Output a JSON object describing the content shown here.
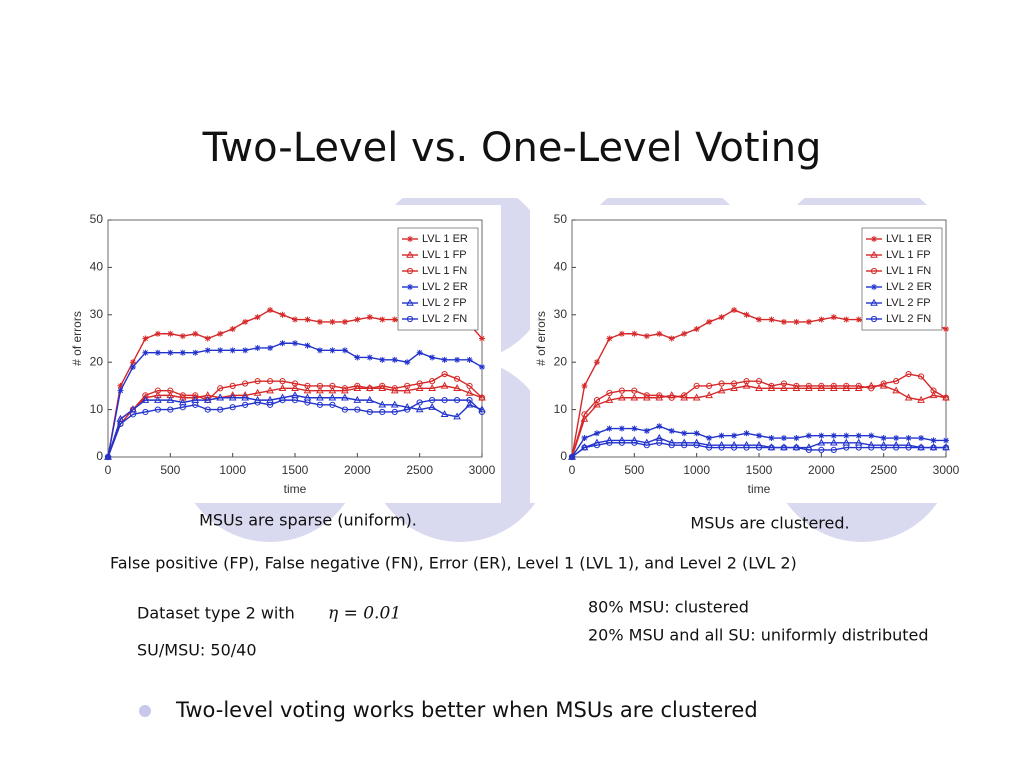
{
  "title": "Two-Level vs. One-Level Voting",
  "chart_data": [
    {
      "type": "line",
      "xlabel": "time",
      "ylabel": "# of errors",
      "x": [
        0,
        100,
        200,
        300,
        400,
        500,
        600,
        700,
        800,
        900,
        1000,
        1100,
        1200,
        1300,
        1400,
        1500,
        1600,
        1700,
        1800,
        1900,
        2000,
        2100,
        2200,
        2300,
        2400,
        2500,
        2600,
        2700,
        2800,
        2900,
        3000
      ],
      "xlim": [
        0,
        3000
      ],
      "ylim": [
        0,
        50
      ],
      "xticks": [
        0,
        500,
        1000,
        1500,
        2000,
        2500,
        3000
      ],
      "yticks": [
        0,
        10,
        20,
        30,
        40,
        50
      ],
      "legend": "upper right",
      "series": [
        {
          "name": "LVL 1 ER",
          "color": "#d62828",
          "marker": "star",
          "values": [
            0,
            15,
            20,
            25,
            26,
            26,
            25.5,
            26,
            25,
            26,
            27,
            28.5,
            29.5,
            31,
            30,
            29,
            29,
            28.5,
            28.5,
            28.5,
            29,
            29.5,
            29,
            29,
            28.5,
            28,
            29,
            29,
            29,
            28,
            25
          ]
        },
        {
          "name": "LVL 1 FP",
          "color": "#d62828",
          "marker": "triangle",
          "values": [
            0,
            8,
            10,
            12.5,
            13,
            13,
            12.5,
            12.5,
            13,
            12.5,
            13,
            13,
            13.5,
            14,
            14.5,
            14.5,
            14,
            14,
            14,
            14,
            14.5,
            14.5,
            14.5,
            14,
            14,
            14.5,
            14.5,
            15,
            14.5,
            13.5,
            12.5
          ]
        },
        {
          "name": "LVL 1 FN",
          "color": "#d62828",
          "marker": "circle",
          "values": [
            0,
            7,
            10,
            13,
            14,
            14,
            13,
            13,
            12,
            14.5,
            15,
            15.5,
            16,
            16,
            16,
            15.5,
            15,
            15,
            15,
            14.5,
            15,
            14.5,
            15,
            14.5,
            15,
            15.5,
            16,
            17.5,
            16.5,
            15,
            12.5
          ]
        },
        {
          "name": "LVL 2 ER",
          "color": "#2233cc",
          "marker": "star",
          "values": [
            0,
            14,
            19,
            22,
            22,
            22,
            22,
            22,
            22.5,
            22.5,
            22.5,
            22.5,
            23,
            23,
            24,
            24,
            23.5,
            22.5,
            22.5,
            22.5,
            21,
            21,
            20.5,
            20.5,
            20,
            22,
            21,
            20.5,
            20.5,
            20.5,
            19
          ]
        },
        {
          "name": "LVL 2 FP",
          "color": "#2233cc",
          "marker": "triangle",
          "values": [
            0,
            8,
            10,
            12,
            12,
            12,
            11.5,
            12,
            12,
            12.5,
            12.5,
            12.5,
            12,
            12,
            12.5,
            13,
            12.5,
            12.5,
            12.5,
            12.5,
            12,
            12,
            11,
            11,
            10.5,
            10,
            10.5,
            9,
            8.5,
            11,
            10
          ]
        },
        {
          "name": "LVL 2 FN",
          "color": "#2233cc",
          "marker": "circle",
          "values": [
            0,
            7,
            9,
            9.5,
            10,
            10,
            10.5,
            11,
            10,
            10,
            10.5,
            11,
            11.5,
            11,
            12,
            12,
            11.5,
            11,
            11,
            10,
            10,
            9.5,
            9.5,
            9.5,
            10,
            11.5,
            12,
            12,
            12,
            12,
            9.5
          ]
        }
      ]
    },
    {
      "type": "line",
      "xlabel": "time",
      "ylabel": "# of errors",
      "x": [
        0,
        100,
        200,
        300,
        400,
        500,
        600,
        700,
        800,
        900,
        1000,
        1100,
        1200,
        1300,
        1400,
        1500,
        1600,
        1700,
        1800,
        1900,
        2000,
        2100,
        2200,
        2300,
        2400,
        2500,
        2600,
        2700,
        2800,
        2900,
        3000
      ],
      "xlim": [
        0,
        3000
      ],
      "ylim": [
        0,
        50
      ],
      "xticks": [
        0,
        500,
        1000,
        1500,
        2000,
        2500,
        3000
      ],
      "yticks": [
        0,
        10,
        20,
        30,
        40,
        50
      ],
      "legend": "upper right",
      "series": [
        {
          "name": "LVL 1 ER",
          "color": "#d62828",
          "marker": "star",
          "values": [
            0,
            15,
            20,
            25,
            26,
            26,
            25.5,
            26,
            25,
            26,
            27,
            28.5,
            29.5,
            31,
            30,
            29,
            29,
            28.5,
            28.5,
            28.5,
            29,
            29.5,
            29,
            29,
            28.5,
            28,
            29,
            29,
            29,
            28,
            27
          ]
        },
        {
          "name": "LVL 1 FP",
          "color": "#d62828",
          "marker": "triangle",
          "values": [
            0,
            8,
            11,
            12,
            12.5,
            12.5,
            12.5,
            12.5,
            13,
            12.5,
            12.5,
            13,
            14,
            14.5,
            15,
            14.5,
            14.5,
            14.5,
            14.5,
            14.5,
            14.5,
            14.5,
            14.5,
            14.5,
            15,
            15,
            14,
            12.5,
            12,
            13,
            12.5
          ]
        },
        {
          "name": "LVL 1 FN",
          "color": "#d62828",
          "marker": "circle",
          "values": [
            0,
            9,
            12,
            13.5,
            14,
            14,
            13,
            13,
            12.5,
            13,
            15,
            15,
            15.5,
            15.5,
            16,
            16,
            15,
            15.5,
            15,
            15,
            15,
            15,
            15,
            15,
            14.5,
            15.5,
            16,
            17.5,
            17,
            14,
            12.5
          ]
        },
        {
          "name": "LVL 2 ER",
          "color": "#2233cc",
          "marker": "star",
          "values": [
            0,
            4,
            5,
            6,
            6,
            6,
            5.5,
            6.5,
            5.5,
            5,
            5,
            4,
            4.5,
            4.5,
            5,
            4.5,
            4,
            4,
            4,
            4.5,
            4.5,
            4.5,
            4.5,
            4.5,
            4.5,
            4,
            4,
            4,
            4,
            3.5,
            3.5
          ]
        },
        {
          "name": "LVL 2 FP",
          "color": "#2233cc",
          "marker": "triangle",
          "values": [
            0,
            2,
            3,
            3.5,
            3.5,
            3.5,
            3,
            4,
            3,
            3,
            3,
            2.5,
            2.5,
            2.5,
            2.5,
            2.5,
            2,
            2,
            2,
            2,
            3,
            3,
            3,
            3,
            2.5,
            2.5,
            2.5,
            2.5,
            2,
            2,
            2
          ]
        },
        {
          "name": "LVL 2 FN",
          "color": "#2233cc",
          "marker": "circle",
          "values": [
            0,
            2,
            2.5,
            3,
            3,
            3,
            2.5,
            3,
            2.5,
            2.5,
            2.5,
            2,
            2,
            2,
            2,
            2,
            2,
            2,
            2,
            1.5,
            1.5,
            1.5,
            2,
            2,
            2,
            2,
            2,
            2,
            2,
            2,
            2
          ]
        }
      ]
    }
  ],
  "captions": [
    "MSUs are sparse (uniform).",
    "MSUs are clustered."
  ],
  "abbreviations": "False positive (FP), False negative (FN), Error (ER),  Level 1 (LVL 1), and  Level 2 (LVL 2)",
  "dataset": {
    "text": "Dataset type 2 with",
    "math": "η = 0.01",
    "su_msu": "SU/MSU: 50/40"
  },
  "distribution": [
    "80% MSU: clustered",
    "20% MSU and all SU: uniformly distributed"
  ],
  "bullets": [
    "Two-level voting works better when MSUs are clustered"
  ]
}
